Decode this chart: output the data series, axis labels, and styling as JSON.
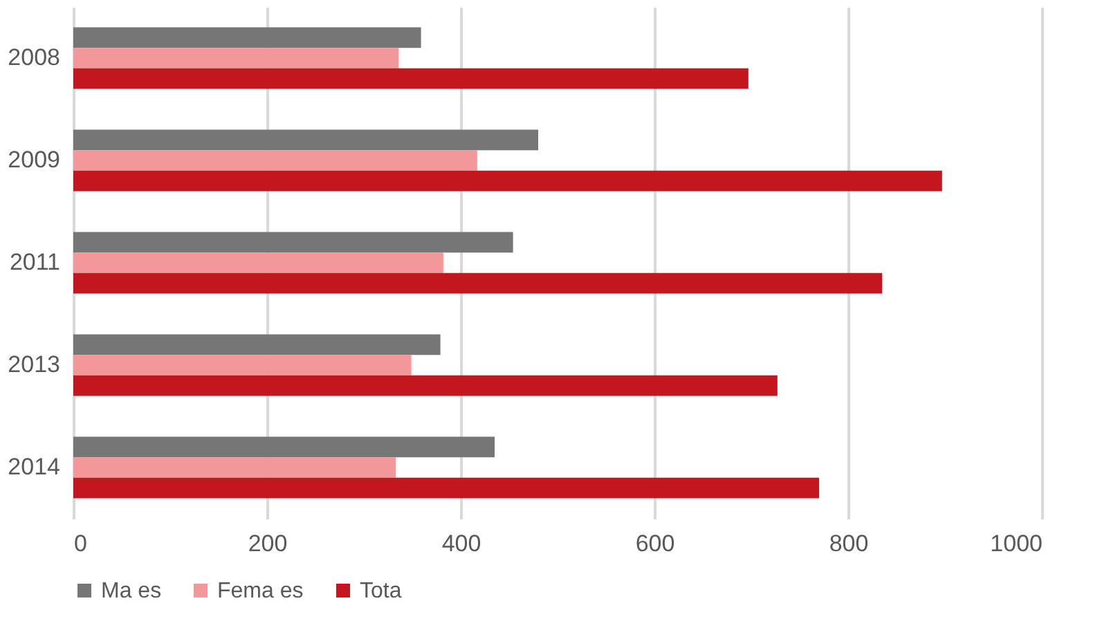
{
  "chart_data": {
    "type": "bar",
    "orientation": "horizontal",
    "categories": [
      "2008",
      "2009",
      "2011",
      "2013",
      "2014"
    ],
    "series": [
      {
        "name": "Ma es",
        "color": "#767676",
        "values": [
          359,
          480,
          454,
          379,
          435
        ]
      },
      {
        "name": "Fema es",
        "color": "#f2989a",
        "values": [
          336,
          417,
          382,
          349,
          333
        ]
      },
      {
        "name": "Tota",
        "color": "#c3161f",
        "values": [
          697,
          897,
          835,
          727,
          770
        ]
      }
    ],
    "xlim": [
      0,
      1000
    ],
    "xticks": [
      0,
      200,
      400,
      600,
      800,
      1000
    ],
    "grid": "x",
    "legend": "bottom"
  }
}
